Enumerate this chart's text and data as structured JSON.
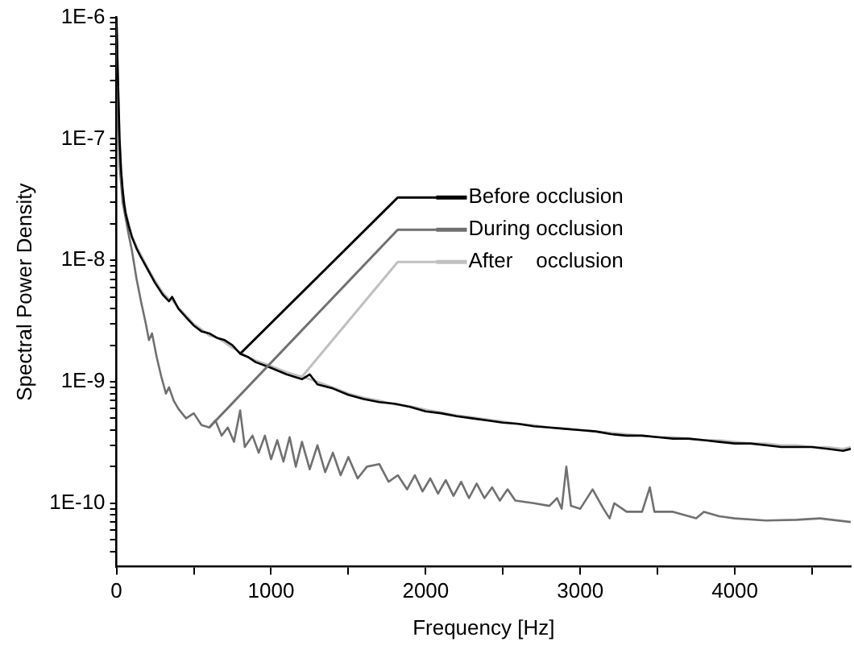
{
  "chart_data": {
    "type": "line",
    "xlabel": "Frequency [Hz]",
    "ylabel": "Spectral Power Density",
    "log": "y",
    "grid": false,
    "legend": "top right",
    "marker": "none",
    "line_style": "solid",
    "xlim": [
      0,
      4750
    ],
    "xticks": [
      0,
      {
        "value": 500,
        "label": null
      },
      1000,
      {
        "value": 1500,
        "label": null
      },
      2000,
      {
        "value": 2500,
        "label": null
      },
      3000,
      {
        "value": 3500,
        "label": null
      },
      4000,
      {
        "value": 4500,
        "label": null
      }
    ],
    "ylim": [
      3e-11,
      1e-06
    ],
    "yticks": [
      {
        "value": 4e-11,
        "label": null
      },
      {
        "value": 5e-11,
        "label": null
      },
      {
        "value": 6e-11,
        "label": null
      },
      {
        "value": 7e-11,
        "label": null
      },
      {
        "value": 8e-11,
        "label": null
      },
      {
        "value": 9e-11,
        "label": null
      },
      {
        "value": 1e-10,
        "label": "1E-10"
      },
      {
        "value": 2e-10,
        "label": null
      },
      {
        "value": 3e-10,
        "label": null
      },
      {
        "value": 4e-10,
        "label": null
      },
      {
        "value": 5e-10,
        "label": null
      },
      {
        "value": 6e-10,
        "label": null
      },
      {
        "value": 7e-10,
        "label": null
      },
      {
        "value": 8e-10,
        "label": null
      },
      {
        "value": 9e-10,
        "label": null
      },
      {
        "value": 1e-09,
        "label": "1E-9"
      },
      {
        "value": 2e-09,
        "label": null
      },
      {
        "value": 3e-09,
        "label": null
      },
      {
        "value": 4e-09,
        "label": null
      },
      {
        "value": 5e-09,
        "label": null
      },
      {
        "value": 6e-09,
        "label": null
      },
      {
        "value": 7e-09,
        "label": null
      },
      {
        "value": 8e-09,
        "label": null
      },
      {
        "value": 9e-09,
        "label": null
      },
      {
        "value": 1e-08,
        "label": "1E-8"
      },
      {
        "value": 2e-08,
        "label": null
      },
      {
        "value": 3e-08,
        "label": null
      },
      {
        "value": 4e-08,
        "label": null
      },
      {
        "value": 5e-08,
        "label": null
      },
      {
        "value": 6e-08,
        "label": null
      },
      {
        "value": 7e-08,
        "label": null
      },
      {
        "value": 8e-08,
        "label": null
      },
      {
        "value": 9e-08,
        "label": null
      },
      {
        "value": 1e-07,
        "label": "1E-7"
      },
      {
        "value": 2e-07,
        "label": null
      },
      {
        "value": 3e-07,
        "label": null
      },
      {
        "value": 4e-07,
        "label": null
      },
      {
        "value": 5e-07,
        "label": null
      },
      {
        "value": 6e-07,
        "label": null
      },
      {
        "value": 7e-07,
        "label": null
      },
      {
        "value": 8e-07,
        "label": null
      },
      {
        "value": 9e-07,
        "label": null
      },
      {
        "value": 1e-06,
        "label": "1E-6"
      }
    ],
    "series": [
      {
        "name": "Before occlusion",
        "color": "#000000",
        "x": [
          0,
          10,
          20,
          30,
          40,
          50,
          60,
          80,
          100,
          130,
          160,
          200,
          250,
          300,
          340,
          360,
          400,
          450,
          500,
          550,
          600,
          650,
          700,
          750,
          800,
          850,
          900,
          1000,
          1100,
          1200,
          1250,
          1300,
          1400,
          1500,
          1600,
          1700,
          1800,
          1900,
          2000,
          2100,
          2200,
          2300,
          2400,
          2500,
          2600,
          2700,
          2800,
          2900,
          3000,
          3100,
          3200,
          3300,
          3400,
          3500,
          3600,
          3700,
          3800,
          3900,
          4000,
          4100,
          4200,
          4300,
          4400,
          4500,
          4600,
          4700,
          4750
        ],
        "values": [
          1e-06,
          3e-07,
          1e-07,
          5.5e-08,
          3.8e-08,
          2.9e-08,
          2.4e-08,
          1.9e-08,
          1.55e-08,
          1.25e-08,
          1.05e-08,
          8.5e-09,
          6.5e-09,
          5.2e-09,
          4.6e-09,
          5e-09,
          4e-09,
          3.4e-09,
          2.9e-09,
          2.6e-09,
          2.5e-09,
          2.3e-09,
          2.2e-09,
          2e-09,
          1.7e-09,
          1.6e-09,
          1.45e-09,
          1.3e-09,
          1.15e-09,
          1.05e-09,
          1.15e-09,
          9.5e-10,
          8.8e-10,
          7.8e-10,
          7.2e-10,
          6.8e-10,
          6.6e-10,
          6.2e-10,
          5.7e-10,
          5.5e-10,
          5.2e-10,
          5e-10,
          4.8e-10,
          4.6e-10,
          4.5e-10,
          4.3e-10,
          4.2e-10,
          4.1e-10,
          4e-10,
          3.9e-10,
          3.7e-10,
          3.6e-10,
          3.6e-10,
          3.5e-10,
          3.4e-10,
          3.4e-10,
          3.3e-10,
          3.2e-10,
          3.1e-10,
          3.1e-10,
          3e-10,
          2.9e-10,
          2.9e-10,
          2.9e-10,
          2.8e-10,
          2.7e-10,
          2.8e-10
        ]
      },
      {
        "name": "During occlusion",
        "color": "#707070",
        "x": [
          0,
          10,
          20,
          40,
          60,
          80,
          100,
          130,
          160,
          190,
          210,
          230,
          260,
          290,
          320,
          340,
          370,
          400,
          450,
          500,
          550,
          600,
          640,
          680,
          720,
          760,
          800,
          830,
          880,
          920,
          960,
          1000,
          1040,
          1080,
          1120,
          1160,
          1200,
          1250,
          1300,
          1350,
          1400,
          1450,
          1500,
          1560,
          1620,
          1700,
          1760,
          1820,
          1880,
          1930,
          1980,
          2030,
          2080,
          2130,
          2180,
          2230,
          2280,
          2330,
          2380,
          2430,
          2480,
          2530,
          2580,
          2700,
          2800,
          2850,
          2880,
          2910,
          2940,
          3000,
          3080,
          3150,
          3190,
          3220,
          3300,
          3400,
          3450,
          3480,
          3600,
          3750,
          3800,
          3900,
          4000,
          4200,
          4400,
          4550,
          4750
        ],
        "values": [
          1e-06,
          2e-07,
          6e-08,
          3e-08,
          2.2e-08,
          1.6e-08,
          1.2e-08,
          7e-09,
          4.5e-09,
          3e-09,
          2.2e-09,
          2.5e-09,
          1.6e-09,
          1.1e-09,
          8e-10,
          9e-10,
          7e-10,
          6e-10,
          5e-10,
          5.5e-10,
          4.4e-10,
          4.2e-10,
          4.8e-10,
          3.6e-10,
          4.2e-10,
          3.2e-10,
          5.8e-10,
          2.9e-10,
          3.6e-10,
          2.6e-10,
          3.6e-10,
          2.3e-10,
          3.3e-10,
          2.2e-10,
          3.5e-10,
          2e-10,
          3.2e-10,
          1.9e-10,
          3e-10,
          1.8e-10,
          2.6e-10,
          1.7e-10,
          2.4e-10,
          1.6e-10,
          2e-10,
          2.1e-10,
          1.5e-10,
          1.7e-10,
          1.3e-10,
          1.7e-10,
          1.25e-10,
          1.6e-10,
          1.2e-10,
          1.55e-10,
          1.15e-10,
          1.5e-10,
          1.1e-10,
          1.45e-10,
          1.1e-10,
          1.35e-10,
          1.05e-10,
          1.3e-10,
          1.05e-10,
          1e-10,
          9.5e-11,
          1.1e-10,
          9e-11,
          2e-10,
          9.5e-11,
          9e-11,
          1.3e-10,
          9e-11,
          7.5e-11,
          1e-10,
          8.5e-11,
          8.5e-11,
          1.35e-10,
          8.5e-11,
          8.5e-11,
          7.5e-11,
          8.5e-11,
          7.8e-11,
          7.5e-11,
          7.2e-11,
          7.3e-11,
          7.5e-11,
          7e-11
        ]
      },
      {
        "name": "After    occlusion",
        "color": "#c0c0c0",
        "x": [
          0,
          10,
          20,
          30,
          40,
          50,
          60,
          80,
          100,
          130,
          160,
          200,
          250,
          300,
          340,
          360,
          400,
          450,
          500,
          550,
          600,
          650,
          700,
          750,
          800,
          850,
          900,
          1000,
          1100,
          1200,
          1250,
          1300,
          1400,
          1500,
          1600,
          1700,
          1800,
          1900,
          2000,
          2100,
          2200,
          2300,
          2400,
          2500,
          2600,
          2700,
          2800,
          2900,
          3000,
          3100,
          3200,
          3300,
          3400,
          3500,
          3600,
          3700,
          3800,
          3900,
          4000,
          4100,
          4200,
          4300,
          4400,
          4500,
          4600,
          4700,
          4750
        ],
        "values": [
          9e-07,
          2.8e-07,
          9.5e-08,
          5.3e-08,
          3.7e-08,
          3e-08,
          2.5e-08,
          2e-08,
          1.6e-08,
          1.3e-08,
          1.1e-08,
          8.8e-09,
          6.8e-09,
          5.4e-09,
          4.8e-09,
          4.7e-09,
          4.1e-09,
          3.5e-09,
          3e-09,
          2.7e-09,
          2.4e-09,
          2.3e-09,
          2.1e-09,
          1.9e-09,
          1.75e-09,
          1.6e-09,
          1.5e-09,
          1.35e-09,
          1.2e-09,
          1.1e-09,
          1.05e-09,
          1e-09,
          9e-10,
          8e-10,
          7.4e-10,
          7e-10,
          6.5e-10,
          6.3e-10,
          5.9e-10,
          5.6e-10,
          5.3e-10,
          5.1e-10,
          4.9e-10,
          4.7e-10,
          4.5e-10,
          4.4e-10,
          4.2e-10,
          4.1e-10,
          4e-10,
          3.9e-10,
          3.8e-10,
          3.7e-10,
          3.6e-10,
          3.5e-10,
          3.5e-10,
          3.4e-10,
          3.3e-10,
          3.3e-10,
          3.2e-10,
          3.1e-10,
          3.1e-10,
          3e-10,
          3e-10,
          2.9e-10,
          2.9e-10,
          2.8e-10,
          2.9e-10
        ]
      }
    ]
  }
}
